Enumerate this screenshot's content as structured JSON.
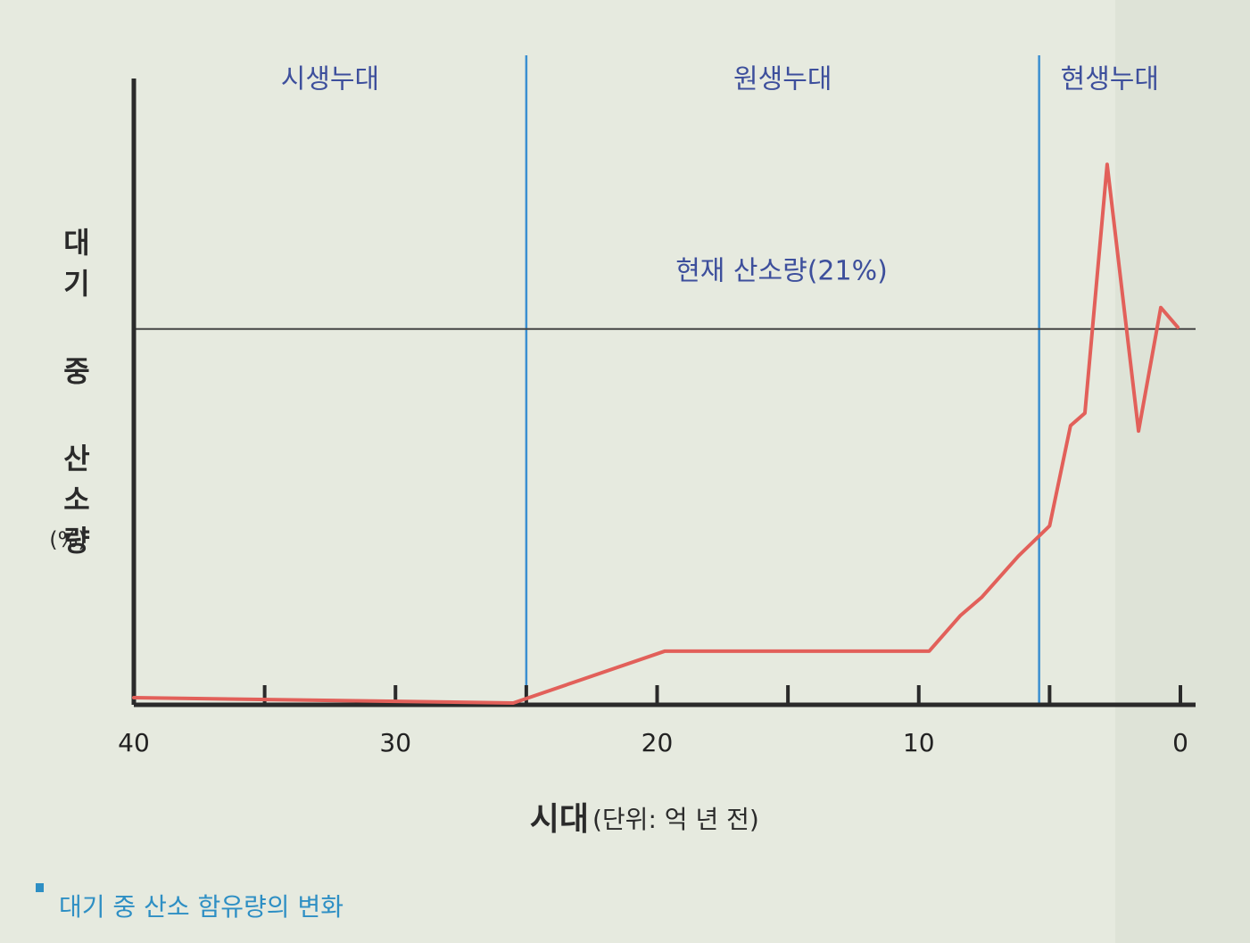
{
  "chart_data": {
    "type": "line",
    "y_label": "대기 중 산소량",
    "y_unit": "(%)",
    "x_label": "시대",
    "x_unit": "(단위: 억 년 전)",
    "caption": "대기 중 산소 함유량의 변화",
    "x": [
      40,
      25.5,
      19.7,
      9.6,
      8.4,
      7.6,
      6.2,
      5.0,
      4.2,
      3.65,
      2.8,
      1.6,
      0.75,
      0.1
    ],
    "series": [
      {
        "color": "#e2605a",
        "values": [
          0.4,
          0.1,
          3,
          3,
          5,
          6,
          8.3,
          10,
          15.6,
          16.3,
          30.2,
          15.3,
          22.2,
          21.1
        ]
      }
    ],
    "xlim": [
      40,
      0
    ],
    "xticks": [
      40,
      30,
      20,
      10,
      0
    ],
    "minor_xticks": [
      35,
      25,
      15,
      5
    ],
    "ylim": [
      0,
      35
    ],
    "reference_line": {
      "value": 21,
      "label": "현재 산소량(21%)"
    },
    "eras": [
      {
        "name": "시생누대",
        "start": 40,
        "end": 25
      },
      {
        "name": "원생누대",
        "start": 25,
        "end": 5.4
      },
      {
        "name": "현생누대",
        "start": 5.4,
        "end": 0
      }
    ]
  }
}
